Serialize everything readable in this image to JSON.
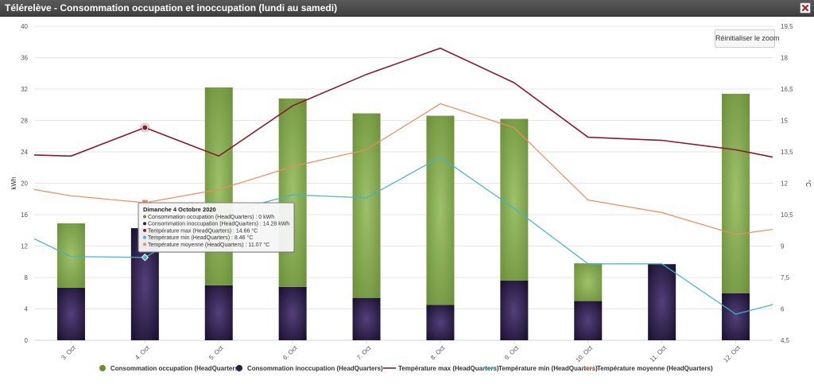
{
  "window": {
    "title": "Télérelève - Consommation occupation et inoccupation (lundi au samedi)",
    "close_icon": "close-icon"
  },
  "toolbar": {
    "reset_zoom_label": "Réinitialiser le zoom"
  },
  "colors": {
    "occupation": "#6b8e3a",
    "inoccupation": "#2e1f4a",
    "tmax": "#8b1a2b",
    "tmin": "#3fb4cf",
    "tmoy": "#f08a5d"
  },
  "chart_data": {
    "type": "bar",
    "categories": [
      "3. Oct",
      "4. Oct",
      "5. Oct",
      "6. Oct",
      "7. Oct",
      "8. Oct",
      "9. Oct",
      "10. Oct",
      "11. Oct",
      "12. Oct"
    ],
    "ylabel": "kWh",
    "ylim": [
      0,
      40
    ],
    "yticks": [
      0,
      4,
      8,
      12,
      16,
      20,
      24,
      28,
      32,
      36,
      40
    ],
    "y2label": "°C",
    "y2lim": [
      4.5,
      19.5
    ],
    "y2ticks": [
      "4,5",
      "6",
      "7,5",
      "9",
      "10,5",
      "12",
      "13,5",
      "15",
      "16,5",
      "18",
      "19,5"
    ],
    "grid": true,
    "legend_position": "bottom",
    "series": [
      {
        "name": "Consommation occupation (HeadQuarters)",
        "kind": "bar",
        "axis": "left",
        "values": [
          8.2,
          0,
          25.2,
          24.0,
          23.5,
          24.1,
          20.6,
          4.8,
          0,
          25.4
        ]
      },
      {
        "name": "Consommation inoccupation (HeadQuarters)",
        "kind": "bar",
        "axis": "left",
        "values": [
          6.7,
          14.28,
          7.0,
          6.8,
          5.4,
          4.5,
          7.6,
          5.0,
          9.7,
          6.0
        ]
      },
      {
        "name": "Température max (HeadQuarters)",
        "kind": "line",
        "axis": "right",
        "values": [
          13.3,
          14.66,
          13.3,
          15.7,
          17.2,
          18.45,
          16.8,
          14.2,
          14.05,
          13.6
        ]
      },
      {
        "name": "Température min (HeadQuarters)",
        "kind": "line",
        "axis": "right",
        "values": [
          8.5,
          8.46,
          10.5,
          11.45,
          11.3,
          13.25,
          10.8,
          8.15,
          8.15,
          5.75
        ]
      },
      {
        "name": "Température moyenne (HeadQuarters)",
        "kind": "line",
        "axis": "right",
        "values": [
          11.4,
          11.07,
          11.7,
          12.8,
          13.6,
          15.8,
          14.65,
          11.2,
          10.6,
          9.55
        ]
      }
    ],
    "edge_points": {
      "left": {
        "tmax": 13.35,
        "tmin": 9.35,
        "tmoy": 11.7
      },
      "right": {
        "tmax": 13.25,
        "tmin": 6.2,
        "tmoy": 9.8
      }
    },
    "tooltip": {
      "title": "Dimanche 4 Octobre 2020",
      "lines": [
        "Consommation occupation (HeadQuarters) : 0 kWh",
        "Consommation inoccupation (HeadQuarters) : 14.28 kWh",
        "Température max (HeadQuarters) : 14.66 °C",
        "Température min (HeadQuarters) : 8.46 °C",
        "Température moyenne (HeadQuarters) : 11.07 °C"
      ]
    },
    "highlight_index": 1
  }
}
